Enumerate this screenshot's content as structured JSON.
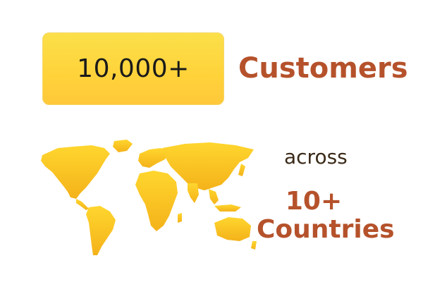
{
  "stats": {
    "customer_count": "10,000+",
    "customer_label": "Customers",
    "connector": "across",
    "country_count": "10+",
    "country_label": "Countries"
  },
  "colors": {
    "badge_yellow": "#fbd84a",
    "accent_brown": "#b5522b",
    "text_dark": "#1a1a1a",
    "map_yellow": "#f7c31c"
  },
  "icons": {
    "map": "world-map-icon"
  }
}
